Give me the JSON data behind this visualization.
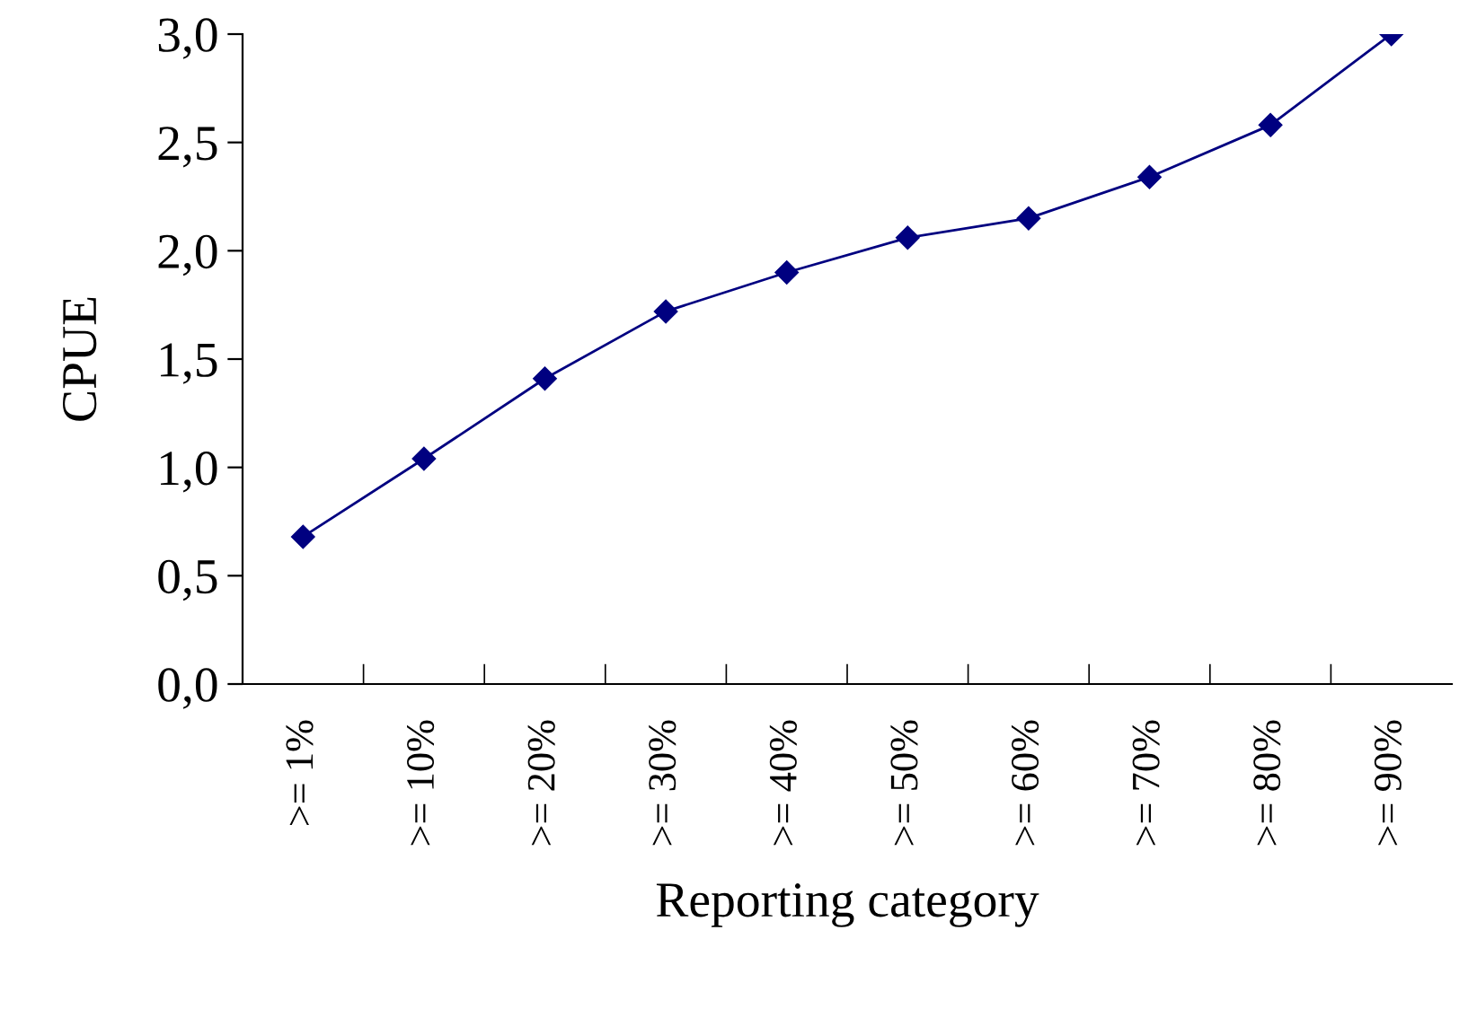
{
  "chart_data": {
    "type": "line",
    "xlabel": "Reporting category",
    "ylabel": "CPUE",
    "categories": [
      ">= 1%",
      ">= 10%",
      ">= 20%",
      ">= 30%",
      ">= 40%",
      ">= 50%",
      ">= 60%",
      ">= 70%",
      ">= 80%",
      ">= 90%"
    ],
    "series": [
      {
        "color": "#000080",
        "values": [
          0.68,
          1.04,
          1.41,
          1.72,
          1.9,
          2.06,
          2.15,
          2.34,
          2.58,
          3.0
        ]
      }
    ],
    "ylim": [
      0,
      3
    ],
    "yticks": [
      {
        "value": 0,
        "label": "0,0"
      },
      {
        "value": 0.5,
        "label": "0,5"
      },
      {
        "value": 1,
        "label": "1,0"
      },
      {
        "value": 1.5,
        "label": "1,5"
      },
      {
        "value": 2,
        "label": "2,0"
      },
      {
        "value": 2.5,
        "label": "2,5"
      },
      {
        "value": 3,
        "label": "3,0"
      }
    ],
    "marker": "diamond",
    "line_style": "solid",
    "grid": false,
    "legend": false
  }
}
